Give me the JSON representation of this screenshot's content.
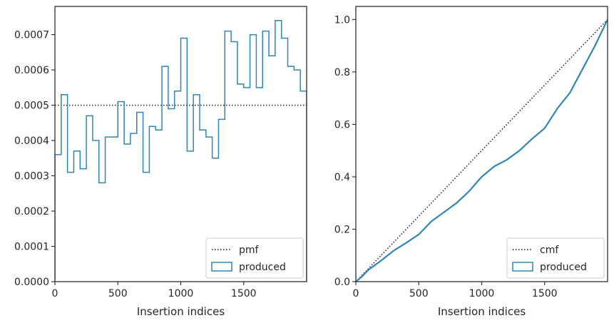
{
  "chart_data": [
    {
      "type": "step",
      "xlabel": "Insertion indices",
      "ylabel": "",
      "xlim": [
        0,
        2000
      ],
      "ylim": [
        0,
        0.00078
      ],
      "xticks": [
        0,
        500,
        1000,
        1500
      ],
      "yticks": [
        0.0,
        0.0001,
        0.0002,
        0.0003,
        0.0004,
        0.0005,
        0.0006,
        0.0007
      ],
      "ytick_labels": [
        "0.0000",
        "0.0001",
        "0.0002",
        "0.0003",
        "0.0004",
        "0.0005",
        "0.0006",
        "0.0007"
      ],
      "grid": false,
      "legend": {
        "position": "lower-right",
        "entries": [
          "pmf",
          "produced"
        ]
      },
      "series": [
        {
          "name": "pmf",
          "style": "dotted",
          "color": "#111111",
          "x": [
            0,
            2000
          ],
          "y": [
            0.0005,
            0.0005
          ]
        },
        {
          "name": "produced",
          "style": "step",
          "color": "#2f86b8",
          "bin_width": 50,
          "bin_starts": [
            0,
            50,
            100,
            150,
            200,
            250,
            300,
            350,
            400,
            450,
            500,
            550,
            600,
            650,
            700,
            750,
            800,
            850,
            900,
            950,
            1000,
            1050,
            1100,
            1150,
            1200,
            1250,
            1300,
            1350,
            1400,
            1450,
            1500,
            1550,
            1600,
            1650,
            1700,
            1750,
            1800,
            1850,
            1900,
            1950
          ],
          "values": [
            0.00036,
            0.00053,
            0.00031,
            0.00037,
            0.00032,
            0.00047,
            0.0004,
            0.00028,
            0.00041,
            0.00041,
            0.00051,
            0.00039,
            0.00042,
            0.00048,
            0.00031,
            0.00044,
            0.00043,
            0.00061,
            0.00049,
            0.00054,
            0.00069,
            0.00037,
            0.00053,
            0.00043,
            0.00041,
            0.00035,
            0.00046,
            0.00071,
            0.00068,
            0.00056,
            0.00055,
            0.0007,
            0.00055,
            0.00071,
            0.00064,
            0.00074,
            0.00069,
            0.00061,
            0.0006,
            0.00054
          ]
        }
      ]
    },
    {
      "type": "line",
      "xlabel": "Insertion indices",
      "ylabel": "",
      "xlim": [
        0,
        2000
      ],
      "ylim": [
        0,
        1.05
      ],
      "xticks": [
        0,
        500,
        1000,
        1500
      ],
      "yticks": [
        0.0,
        0.2,
        0.4,
        0.6,
        0.8,
        1.0
      ],
      "ytick_labels": [
        "0.0",
        "0.2",
        "0.4",
        "0.6",
        "0.8",
        "1.0"
      ],
      "grid": false,
      "legend": {
        "position": "lower-right",
        "entries": [
          "cmf",
          "produced"
        ]
      },
      "series": [
        {
          "name": "cmf",
          "style": "dotted",
          "color": "#111111",
          "x": [
            0,
            2000
          ],
          "y": [
            0,
            1.0
          ]
        },
        {
          "name": "produced",
          "style": "solid",
          "color": "#2f86b8",
          "x": [
            0,
            50,
            100,
            200,
            300,
            400,
            500,
            600,
            700,
            800,
            900,
            1000,
            1100,
            1200,
            1300,
            1400,
            1500,
            1600,
            1700,
            1800,
            1900,
            2000
          ],
          "y": [
            0,
            0.02,
            0.045,
            0.08,
            0.118,
            0.148,
            0.18,
            0.23,
            0.265,
            0.3,
            0.345,
            0.4,
            0.44,
            0.465,
            0.5,
            0.545,
            0.585,
            0.66,
            0.72,
            0.81,
            0.9,
            1.0
          ]
        }
      ]
    }
  ]
}
